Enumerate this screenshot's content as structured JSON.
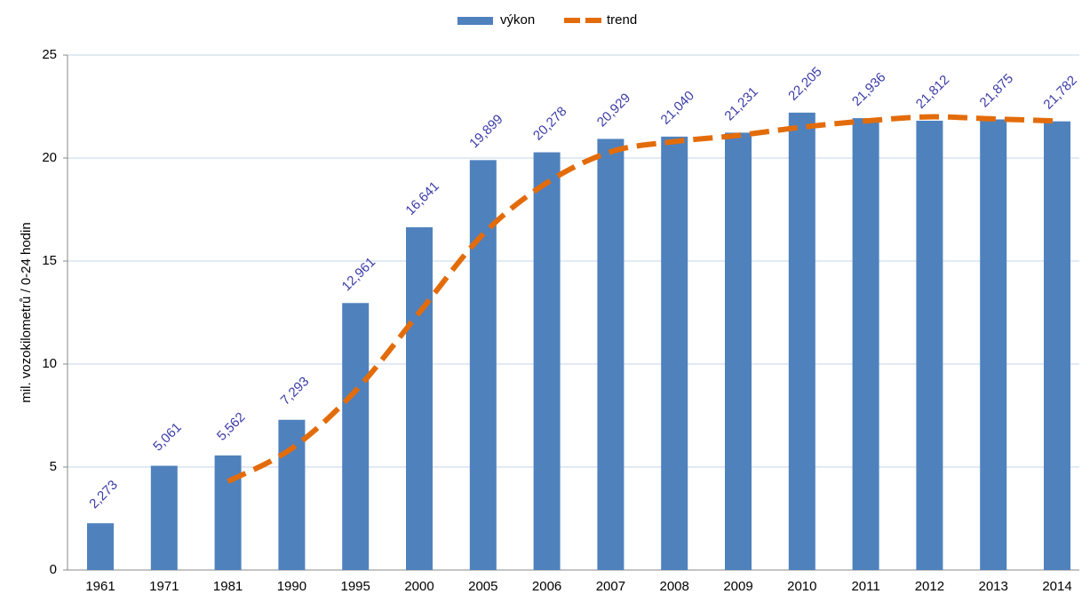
{
  "chart_data": {
    "type": "bar",
    "y_label": "mil. vozokilometrů / 0-24 hodin",
    "categories": [
      "1961",
      "1971",
      "1981",
      "1990",
      "1995",
      "2000",
      "2005",
      "2006",
      "2007",
      "2008",
      "2009",
      "2010",
      "2011",
      "2012",
      "2013",
      "2014"
    ],
    "series": [
      {
        "name": "výkon",
        "type": "bar",
        "color": "#4f81bd",
        "values": [
          2.273,
          5.061,
          5.562,
          7.293,
          12.961,
          16.641,
          19.899,
          20.278,
          20.929,
          21.04,
          21.231,
          22.205,
          21.936,
          21.812,
          21.875,
          21.782
        ],
        "value_labels": [
          "2,273",
          "5,061",
          "5,562",
          "7,293",
          "12,961",
          "16,641",
          "19,899",
          "20,278",
          "20,929",
          "21,040",
          "21,231",
          "22,205",
          "21,936",
          "21,812",
          "21,875",
          "21,782"
        ]
      },
      {
        "name": "trend",
        "type": "line",
        "color": "#e36c0a",
        "dashed": true,
        "values": [
          null,
          null,
          4.3,
          5.9,
          8.7,
          12.5,
          16.3,
          18.8,
          20.3,
          20.8,
          21.1,
          21.5,
          21.8,
          22.0,
          21.9,
          21.8
        ]
      }
    ],
    "ylim": [
      0,
      25
    ],
    "yticks": [
      0,
      5,
      10,
      15,
      20,
      25
    ],
    "grid": true,
    "legend": "top"
  }
}
